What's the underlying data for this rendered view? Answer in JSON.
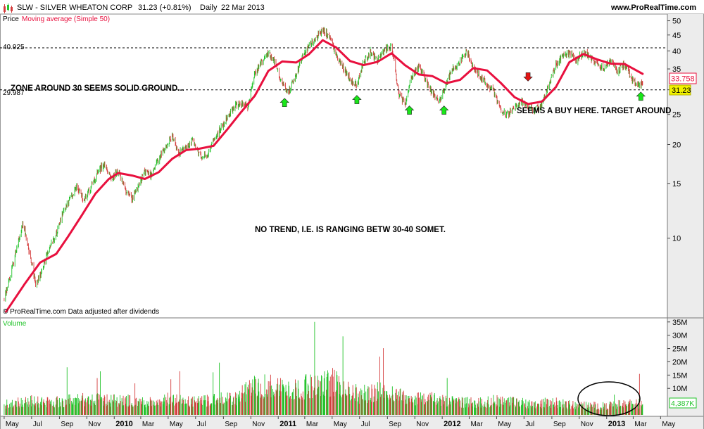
{
  "header": {
    "ticker": "SLW - SILVER WHEATON CORP",
    "quote": "31.23 (+0.81%)",
    "period": "Daily",
    "date": "22 Mar 2013",
    "site": "www.ProRealTime.com"
  },
  "price_panel": {
    "label": "Price",
    "ma_label": "Moving average (Simple 50)",
    "credit": "© ProRealTime.com  Data adjusted after dividends",
    "level_top_label": "40.925",
    "level_bottom_label": "29.987",
    "last_ma_label": "33.758",
    "last_price_label": "31.23"
  },
  "volume_panel": {
    "label": "Volume",
    "last_label": "4,387K"
  },
  "annotations": {
    "zone": "ZONE AROUND 30 SEEMS SOLID GROUND...",
    "no_trend": "NO TREND, I.E. IS RANGING BETW 30-40 SOMET.",
    "buy": "SEEMS A BUY HERE. TARGET AROUND"
  },
  "colors": {
    "up": "#22c32a",
    "down": "#d43c3c",
    "ma": "#e8103e",
    "arrow_up": "#19e619",
    "arrow_down": "#e41414",
    "axis_bg": "#ececec"
  },
  "chart_data": [
    {
      "type": "line",
      "scale": "log",
      "ylim": [
        5.6,
        52
      ],
      "y_ticks": [
        10,
        15,
        20,
        25,
        30,
        35,
        40,
        45,
        50
      ],
      "x_tick_labels": [
        "May",
        "Jul",
        "Sep",
        "Nov",
        "2010",
        "Mar",
        "May",
        "Jul",
        "Sep",
        "Nov",
        "2011",
        "Mar",
        "May",
        "Jul",
        "Sep",
        "Nov",
        "2012",
        "Mar",
        "May",
        "Jul",
        "Sep",
        "Nov",
        "2013",
        "Mar",
        "May"
      ],
      "x_tick_bold": [
        "2010",
        "2011",
        "2012",
        "2013"
      ],
      "series": [
        {
          "name": "Price",
          "points": [
            [
              "2009-05-01",
              6.4
            ],
            [
              "2009-05-15",
              7.6
            ],
            [
              "2009-06-01",
              9.6
            ],
            [
              "2009-06-12",
              11.2
            ],
            [
              "2009-06-25",
              9.2
            ],
            [
              "2009-07-10",
              7.1
            ],
            [
              "2009-07-25",
              7.9
            ],
            [
              "2009-08-10",
              9.4
            ],
            [
              "2009-08-25",
              10.3
            ],
            [
              "2009-09-10",
              12.2
            ],
            [
              "2009-09-25",
              13.4
            ],
            [
              "2009-10-10",
              14.6
            ],
            [
              "2009-10-25",
              13.2
            ],
            [
              "2009-11-10",
              14.5
            ],
            [
              "2009-11-25",
              16.3
            ],
            [
              "2009-12-10",
              17.4
            ],
            [
              "2009-12-25",
              15.5
            ],
            [
              "2010-01-10",
              16.4
            ],
            [
              "2010-01-25",
              14.4
            ],
            [
              "2010-02-10",
              13.4
            ],
            [
              "2010-02-25",
              14.7
            ],
            [
              "2010-03-10",
              16.4
            ],
            [
              "2010-03-25",
              15.9
            ],
            [
              "2010-04-10",
              17.9
            ],
            [
              "2010-04-25",
              19.6
            ],
            [
              "2010-05-10",
              21.3
            ],
            [
              "2010-05-25",
              18.7
            ],
            [
              "2010-06-10",
              19.5
            ],
            [
              "2010-06-25",
              20.6
            ],
            [
              "2010-07-10",
              18.5
            ],
            [
              "2010-07-25",
              18.2
            ],
            [
              "2010-08-10",
              20.4
            ],
            [
              "2010-08-25",
              22.4
            ],
            [
              "2010-09-10",
              24.5
            ],
            [
              "2010-09-25",
              26.6
            ],
            [
              "2010-10-10",
              27.1
            ],
            [
              "2010-10-25",
              26.4
            ],
            [
              "2010-11-10",
              33.6
            ],
            [
              "2010-11-25",
              36.6
            ],
            [
              "2010-12-10",
              39.4
            ],
            [
              "2010-12-25",
              36.3
            ],
            [
              "2011-01-10",
              31.4
            ],
            [
              "2011-01-25",
              29.8
            ],
            [
              "2011-02-10",
              33.7
            ],
            [
              "2011-02-25",
              38.5
            ],
            [
              "2011-03-10",
              41.4
            ],
            [
              "2011-03-25",
              44.2
            ],
            [
              "2011-04-10",
              46.4
            ],
            [
              "2011-04-25",
              44.6
            ],
            [
              "2011-05-10",
              38.6
            ],
            [
              "2011-05-25",
              35.4
            ],
            [
              "2011-06-10",
              32.6
            ],
            [
              "2011-06-25",
              30.8
            ],
            [
              "2011-07-10",
              36.9
            ],
            [
              "2011-07-25",
              39.6
            ],
            [
              "2011-08-10",
              37.2
            ],
            [
              "2011-08-25",
              40.2
            ],
            [
              "2011-09-10",
              41.8
            ],
            [
              "2011-09-25",
              29.5
            ],
            [
              "2011-10-10",
              26.6
            ],
            [
              "2011-10-25",
              33.3
            ],
            [
              "2011-11-10",
              35.6
            ],
            [
              "2011-11-25",
              32.4
            ],
            [
              "2011-12-10",
              29.2
            ],
            [
              "2011-12-25",
              27.4
            ],
            [
              "2012-01-10",
              31.3
            ],
            [
              "2012-01-25",
              35.2
            ],
            [
              "2012-02-10",
              36.9
            ],
            [
              "2012-02-25",
              39.8
            ],
            [
              "2012-03-10",
              35.4
            ],
            [
              "2012-03-25",
              33.1
            ],
            [
              "2012-04-10",
              31.2
            ],
            [
              "2012-04-25",
              29.6
            ],
            [
              "2012-05-10",
              25.9
            ],
            [
              "2012-05-25",
              24.9
            ],
            [
              "2012-06-10",
              26.2
            ],
            [
              "2012-06-25",
              27.4
            ],
            [
              "2012-07-10",
              26.6
            ],
            [
              "2012-07-25",
              25.9
            ],
            [
              "2012-08-10",
              26.9
            ],
            [
              "2012-08-25",
              31.1
            ],
            [
              "2012-09-10",
              36.0
            ],
            [
              "2012-09-25",
              38.6
            ],
            [
              "2012-10-10",
              39.5
            ],
            [
              "2012-10-25",
              37.1
            ],
            [
              "2012-11-10",
              39.6
            ],
            [
              "2012-11-25",
              37.9
            ],
            [
              "2012-12-10",
              36.5
            ],
            [
              "2012-12-25",
              35.2
            ],
            [
              "2013-01-10",
              36.9
            ],
            [
              "2013-01-25",
              34.6
            ],
            [
              "2013-02-10",
              36.3
            ],
            [
              "2013-02-25",
              32.6
            ],
            [
              "2013-03-10",
              30.7
            ],
            [
              "2013-03-22",
              31.23
            ]
          ]
        },
        {
          "name": "Moving average (Simple 50)",
          "points": [
            [
              "2009-05-05",
              5.8
            ],
            [
              "2009-06-15",
              7.1
            ],
            [
              "2009-07-20",
              8.35
            ],
            [
              "2009-08-25",
              8.9
            ],
            [
              "2009-09-20",
              10.1
            ],
            [
              "2009-10-20",
              11.8
            ],
            [
              "2009-11-20",
              13.9
            ],
            [
              "2009-12-20",
              15.5
            ],
            [
              "2010-01-10",
              16.2
            ],
            [
              "2010-02-10",
              15.9
            ],
            [
              "2010-03-10",
              15.5
            ],
            [
              "2010-04-10",
              16.3
            ],
            [
              "2010-05-10",
              18.0
            ],
            [
              "2010-06-10",
              19.2
            ],
            [
              "2010-07-10",
              19.4
            ],
            [
              "2010-08-10",
              19.8
            ],
            [
              "2010-09-10",
              22.4
            ],
            [
              "2010-10-10",
              25.4
            ],
            [
              "2010-11-10",
              28.7
            ],
            [
              "2010-12-10",
              34.5
            ],
            [
              "2011-01-10",
              37.0
            ],
            [
              "2011-02-10",
              36.7
            ],
            [
              "2011-03-10",
              39.0
            ],
            [
              "2011-04-10",
              43.3
            ],
            [
              "2011-05-10",
              41.0
            ],
            [
              "2011-06-10",
              37.1
            ],
            [
              "2011-07-10",
              36.0
            ],
            [
              "2011-08-10",
              36.9
            ],
            [
              "2011-09-10",
              39.3
            ],
            [
              "2011-10-10",
              36.0
            ],
            [
              "2011-11-10",
              33.6
            ],
            [
              "2011-12-10",
              33.2
            ],
            [
              "2012-01-10",
              31.5
            ],
            [
              "2012-02-10",
              32.3
            ],
            [
              "2012-03-10",
              35.2
            ],
            [
              "2012-04-10",
              34.6
            ],
            [
              "2012-05-10",
              31.6
            ],
            [
              "2012-06-10",
              28.4
            ],
            [
              "2012-07-10",
              27.0
            ],
            [
              "2012-08-10",
              27.5
            ],
            [
              "2012-09-10",
              30.6
            ],
            [
              "2012-10-10",
              36.8
            ],
            [
              "2012-11-10",
              39.1
            ],
            [
              "2012-12-10",
              37.6
            ],
            [
              "2013-01-10",
              36.4
            ],
            [
              "2013-02-10",
              36.3
            ],
            [
              "2013-03-22",
              33.758
            ]
          ]
        }
      ],
      "horizontal_lines": [
        {
          "label": "40.925",
          "value": 40.925
        },
        {
          "label": "29.987",
          "value": 29.987
        }
      ],
      "markers": [
        {
          "kind": "up",
          "date": "2011-01-15",
          "value": 27.3
        },
        {
          "kind": "up",
          "date": "2011-06-25",
          "value": 27.9
        },
        {
          "kind": "up",
          "date": "2011-10-20",
          "value": 25.8
        },
        {
          "kind": "up",
          "date": "2012-01-05",
          "value": 25.8
        },
        {
          "kind": "down",
          "date": "2012-07-10",
          "value": 33.0
        },
        {
          "kind": "up",
          "date": "2013-03-18",
          "value": 28.6
        }
      ]
    },
    {
      "type": "bar",
      "name": "Volume",
      "ylim": [
        0,
        36
      ],
      "y_tick_labels": [
        "10M",
        "15M",
        "20M",
        "25M",
        "30M",
        "35M"
      ],
      "y_tick_values": [
        10,
        15,
        20,
        25,
        30,
        35
      ],
      "series": [
        {
          "name": "Volume",
          "points": [
            [
              "2009-05-01",
              4.0
            ],
            [
              "2009-06-01",
              4.8
            ],
            [
              "2009-07-01",
              5.2
            ],
            [
              "2009-08-01",
              4.6
            ],
            [
              "2009-09-01",
              5.0
            ],
            [
              "2009-10-01",
              5.6
            ],
            [
              "2009-11-01",
              5.8
            ],
            [
              "2009-12-01",
              5.8
            ],
            [
              "2010-01-01",
              5.4
            ],
            [
              "2010-02-01",
              5.5
            ],
            [
              "2010-03-01",
              4.8
            ],
            [
              "2010-04-01",
              5.0
            ],
            [
              "2010-05-01",
              6.0
            ],
            [
              "2010-06-01",
              5.2
            ],
            [
              "2010-07-01",
              4.9
            ],
            [
              "2010-08-01",
              5.3
            ],
            [
              "2010-09-01",
              6.0
            ],
            [
              "2010-10-01",
              6.3
            ],
            [
              "2010-11-01",
              10.0
            ],
            [
              "2010-12-01",
              11.0
            ],
            [
              "2011-01-01",
              10.5
            ],
            [
              "2011-02-01",
              9.0
            ],
            [
              "2011-03-01",
              10.5
            ],
            [
              "2011-04-01",
              11.5
            ],
            [
              "2011-05-01",
              12.5
            ],
            [
              "2011-06-01",
              9.5
            ],
            [
              "2011-07-01",
              7.5
            ],
            [
              "2011-08-01",
              8.5
            ],
            [
              "2011-09-01",
              9.0
            ],
            [
              "2011-10-01",
              7.0
            ],
            [
              "2011-11-01",
              6.2
            ],
            [
              "2011-12-01",
              6.3
            ],
            [
              "2012-01-01",
              5.2
            ],
            [
              "2012-02-01",
              5.0
            ],
            [
              "2012-03-01",
              4.8
            ],
            [
              "2012-04-01",
              4.5
            ],
            [
              "2012-05-01",
              5.5
            ],
            [
              "2012-06-01",
              5.0
            ],
            [
              "2012-07-01",
              4.5
            ],
            [
              "2012-08-01",
              4.2
            ],
            [
              "2012-09-01",
              4.8
            ],
            [
              "2012-10-01",
              4.0
            ],
            [
              "2012-11-01",
              3.6
            ],
            [
              "2012-12-01",
              3.5
            ],
            [
              "2013-01-01",
              3.3
            ],
            [
              "2013-02-01",
              4.0
            ],
            [
              "2013-03-22",
              4.387
            ]
          ]
        }
      ]
    }
  ]
}
